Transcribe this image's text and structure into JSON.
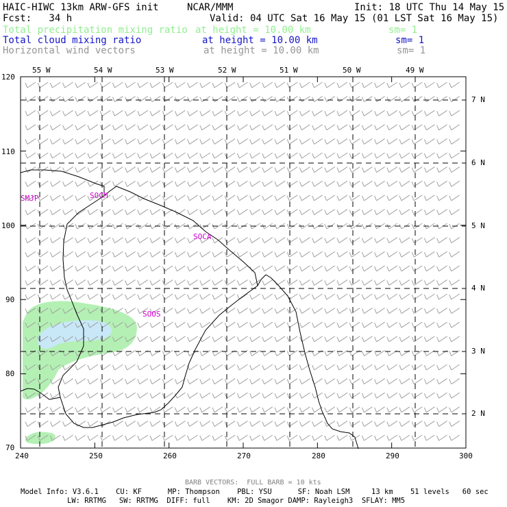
{
  "header": {
    "title_left": "HAIC-HIWC 13km ARW-GFS init",
    "title_center": "NCAR/MMM",
    "init": "Init: 18 UTC Thu 14 May 15",
    "fcst": "Fcst:   34 h",
    "valid": "Valid: 04 UTC Sat 16 May 15 (01 LST Sat 16 May 15)"
  },
  "fields": [
    {
      "name": "Total precipitation mixing ratio",
      "height": "at height = 10.00 km",
      "sm": "sm= 1",
      "color": "#90ee90"
    },
    {
      "name": "Total cloud mixing ratio",
      "height": "at height = 10.00 km",
      "sm": "sm= 1",
      "color": "#1414c8"
    },
    {
      "name": "Horizontal wind vectors",
      "height": "at height = 10.00 km",
      "sm": "sm= 1",
      "color": "#969696"
    }
  ],
  "map": {
    "x_ticks": [
      "240",
      "250",
      "260",
      "270",
      "280",
      "290",
      "300"
    ],
    "y_ticks": [
      "70",
      "80",
      "90",
      "100",
      "110",
      "120"
    ],
    "lon_labels": [
      "55 W",
      "54 W",
      "53 W",
      "52 W",
      "51 W",
      "50 W",
      "49 W"
    ],
    "lat_labels": [
      "7 N",
      "6 N",
      "5 N",
      "4 N",
      "3 N",
      "2 N"
    ],
    "stations": [
      "SMJP",
      "SOCM",
      "SOCA",
      "SOOS"
    ],
    "colors": {
      "coast": "#000000",
      "grid": "#000000",
      "station": "#d000d0",
      "barb": "#a0a0a0",
      "precip": "#b4f0b4",
      "cloud": "#c8e8f8"
    }
  },
  "footer": {
    "barb_note": "BARB VECTORS:  FULL BARB = 10 kts",
    "line1": "Model Info: V3.6.1    CU: KF      MP: Thompson    PBL: YSU      SF: Noah LSM     13 km    51 levels   60 sec",
    "line2": "LW: RRTMG   SW: RRTMG  DIFF: full    KM: 2D Smagor DAMP: Rayleigh3  SFLAY: MM5"
  }
}
